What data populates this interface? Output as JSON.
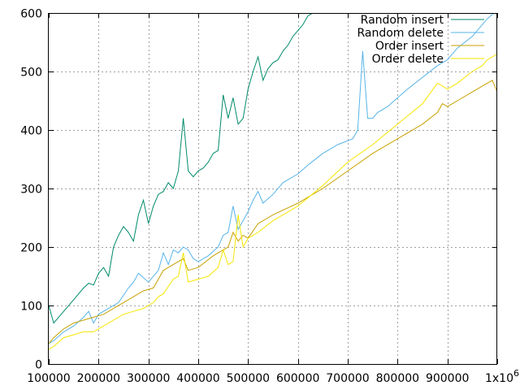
{
  "chart_data": {
    "type": "line",
    "title": "",
    "xlabel": "",
    "ylabel": "",
    "xlim": [
      100000,
      1000000
    ],
    "ylim": [
      0,
      600
    ],
    "grid": true,
    "legend_position": "top-right",
    "x_ticks": [
      {
        "value": 100000,
        "label": "100000"
      },
      {
        "value": 200000,
        "label": "200000"
      },
      {
        "value": 300000,
        "label": "300000"
      },
      {
        "value": 400000,
        "label": "400000"
      },
      {
        "value": 500000,
        "label": "500000"
      },
      {
        "value": 600000,
        "label": "600000"
      },
      {
        "value": 700000,
        "label": "700000"
      },
      {
        "value": 800000,
        "label": "800000"
      },
      {
        "value": 900000,
        "label": "900000"
      }
    ],
    "x_last_tick": {
      "value": 1000000,
      "base": "1x10",
      "exponent": "6"
    },
    "y_ticks": [
      0,
      100,
      200,
      300,
      400,
      500,
      600
    ],
    "series": [
      {
        "name": "Random insert",
        "color": "#008b6b",
        "x": [
          100000,
          110000,
          130000,
          150000,
          170000,
          180000,
          190000,
          200000,
          210000,
          220000,
          230000,
          240000,
          250000,
          260000,
          270000,
          280000,
          290000,
          300000,
          310000,
          320000,
          330000,
          340000,
          350000,
          360000,
          370000,
          380000,
          390000,
          400000,
          410000,
          420000,
          430000,
          440000,
          450000,
          460000,
          470000,
          480000,
          490000,
          500000,
          510000,
          520000,
          530000,
          540000,
          550000,
          560000,
          570000,
          580000,
          590000,
          600000,
          610000,
          620000,
          630000
        ],
        "y": [
          100,
          70,
          90,
          110,
          130,
          138,
          135,
          155,
          165,
          150,
          200,
          220,
          235,
          225,
          210,
          255,
          280,
          240,
          270,
          290,
          295,
          310,
          300,
          330,
          420,
          330,
          320,
          330,
          335,
          345,
          360,
          365,
          460,
          420,
          455,
          410,
          420,
          470,
          500,
          525,
          485,
          505,
          515,
          520,
          535,
          545,
          560,
          570,
          580,
          595,
          600
        ]
      },
      {
        "name": "Random delete",
        "color": "#56b4e9",
        "x": [
          100000,
          110000,
          130000,
          150000,
          170000,
          180000,
          190000,
          200000,
          220000,
          240000,
          260000,
          270000,
          280000,
          300000,
          320000,
          330000,
          340000,
          350000,
          360000,
          370000,
          380000,
          390000,
          400000,
          420000,
          440000,
          450000,
          460000,
          470000,
          480000,
          490000,
          500000,
          510000,
          520000,
          530000,
          550000,
          570000,
          600000,
          620000,
          650000,
          680000,
          710000,
          720000,
          730000,
          740000,
          750000,
          760000,
          780000,
          800000,
          820000,
          850000,
          880000,
          900000,
          920000,
          950000,
          980000,
          1000000
        ],
        "y": [
          35,
          40,
          55,
          65,
          80,
          90,
          70,
          85,
          95,
          105,
          130,
          140,
          155,
          140,
          160,
          190,
          170,
          195,
          190,
          200,
          195,
          180,
          175,
          185,
          200,
          220,
          225,
          270,
          230,
          245,
          260,
          280,
          295,
          275,
          290,
          310,
          325,
          340,
          360,
          375,
          385,
          400,
          535,
          420,
          420,
          430,
          440,
          455,
          470,
          490,
          510,
          520,
          540,
          560,
          590,
          605
        ]
      },
      {
        "name": "Order  insert",
        "color": "#c8a000",
        "x": [
          100000,
          110000,
          130000,
          150000,
          170000,
          190000,
          210000,
          230000,
          250000,
          270000,
          290000,
          310000,
          320000,
          330000,
          350000,
          370000,
          380000,
          400000,
          430000,
          450000,
          460000,
          470000,
          480000,
          490000,
          500000,
          520000,
          550000,
          600000,
          650000,
          700000,
          750000,
          800000,
          850000,
          880000,
          890000,
          900000,
          920000,
          950000,
          980000,
          990000,
          1000000
        ],
        "y": [
          35,
          45,
          60,
          70,
          75,
          80,
          85,
          95,
          105,
          115,
          125,
          130,
          145,
          160,
          170,
          180,
          160,
          165,
          185,
          195,
          200,
          225,
          210,
          220,
          215,
          240,
          255,
          275,
          300,
          330,
          360,
          385,
          410,
          430,
          445,
          440,
          450,
          465,
          480,
          485,
          465
        ]
      },
      {
        "name": "Order  delete",
        "color": "#f5e600",
        "x": [
          100000,
          110000,
          130000,
          150000,
          170000,
          190000,
          210000,
          230000,
          250000,
          270000,
          290000,
          310000,
          320000,
          330000,
          350000,
          360000,
          370000,
          380000,
          400000,
          420000,
          440000,
          450000,
          460000,
          470000,
          480000,
          490000,
          500000,
          520000,
          550000,
          600000,
          650000,
          700000,
          750000,
          800000,
          850000,
          880000,
          900000,
          920000,
          950000,
          970000,
          980000,
          1000000
        ],
        "y": [
          25,
          30,
          45,
          50,
          55,
          55,
          65,
          75,
          85,
          90,
          95,
          105,
          115,
          120,
          145,
          150,
          190,
          140,
          145,
          150,
          165,
          195,
          170,
          175,
          255,
          200,
          215,
          225,
          245,
          270,
          305,
          345,
          375,
          410,
          445,
          480,
          470,
          480,
          500,
          510,
          520,
          530
        ]
      }
    ]
  }
}
